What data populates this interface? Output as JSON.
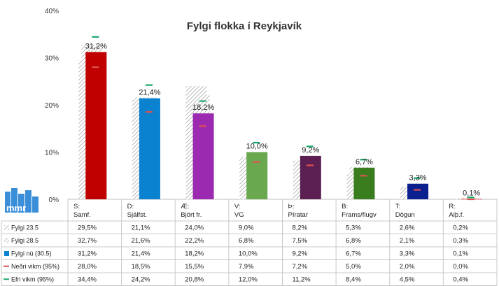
{
  "chart_data": {
    "type": "bar",
    "title": "Fylgi flokka í Reykjavík",
    "yticks": [
      "0%",
      "10%",
      "20%",
      "30%",
      "40%"
    ],
    "ylim": [
      0,
      40
    ],
    "categories": [
      {
        "line1": "S:",
        "line2": "Samf."
      },
      {
        "line1": "D:",
        "line2": "Sjálfst."
      },
      {
        "line1": "Æ:",
        "line2": "Björt fr."
      },
      {
        "line1": "V:",
        "line2": "VG"
      },
      {
        "line1": "Þ:",
        "line2": "Píratar"
      },
      {
        "line1": "B:",
        "line2": "Frams/flugv"
      },
      {
        "line1": "T:",
        "line2": "Dögun"
      },
      {
        "line1": "R:",
        "line2": "Alþ.f."
      }
    ],
    "bar_colors": [
      "#c00000",
      "#0a82d0",
      "#9b2ab0",
      "#6aa84f",
      "#5b1f52",
      "#3a7d1e",
      "#0b1f8f",
      "#e05050"
    ],
    "series": [
      {
        "name": "Fylgi 23.5",
        "kind": "hatched",
        "values": [
          29.5,
          21.1,
          24.0,
          9.0,
          8.2,
          5.3,
          2.6,
          0.2
        ],
        "labels": [
          "29,5%",
          "21,1%",
          "24,0%",
          "9,0%",
          "8,2%",
          "5,3%",
          "2,6%",
          "0,2%"
        ]
      },
      {
        "name": "Fylgi 28.5",
        "kind": "hatched",
        "values": [
          32.7,
          21.6,
          22.2,
          6.8,
          7.5,
          6.8,
          2.1,
          0.3
        ],
        "labels": [
          "32,7%",
          "21,6%",
          "22,2%",
          "6,8%",
          "7,5%",
          "6,8%",
          "2,1%",
          "0,3%"
        ]
      },
      {
        "name": "Fylgi nú (30.5)",
        "kind": "bar",
        "values": [
          31.2,
          21.4,
          18.2,
          10.0,
          9.2,
          6.7,
          3.3,
          0.1
        ],
        "labels": [
          "31,2%",
          "21,4%",
          "18,2%",
          "10,0%",
          "9,2%",
          "6,7%",
          "3,3%",
          "0,1%"
        ]
      },
      {
        "name": "Neðri vikm (95%)",
        "kind": "marker",
        "color": "#e05050",
        "values": [
          28.0,
          18.5,
          15.5,
          7.9,
          7.2,
          5.0,
          2.0,
          0.0
        ],
        "labels": [
          "28,0%",
          "18,5%",
          "15,5%",
          "7,9%",
          "7,2%",
          "5,0%",
          "2,0%",
          "0,0%"
        ]
      },
      {
        "name": "Efri vikm (95%)",
        "kind": "marker",
        "color": "#1aa86a",
        "values": [
          34.4,
          24.2,
          20.8,
          12.0,
          11.2,
          8.4,
          4.5,
          0.4
        ],
        "labels": [
          "34,4%",
          "24,2%",
          "20,8%",
          "12,0%",
          "11,2%",
          "8,4%",
          "4,5%",
          "0,4%"
        ]
      }
    ]
  },
  "logo": {
    "text": "mmr",
    "color": "#3a8fd8"
  }
}
